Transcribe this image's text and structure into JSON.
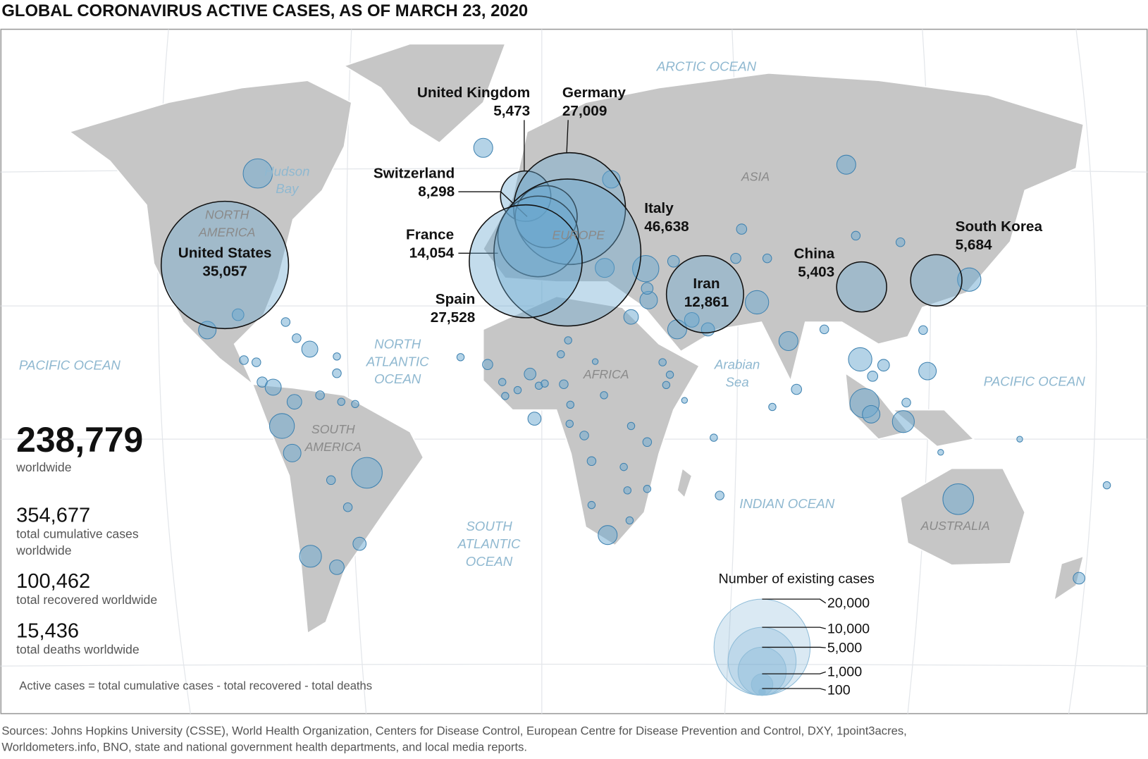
{
  "title": "GLOBAL CORONAVIRUS ACTIVE CASES, AS OF MARCH 23, 2020",
  "oceans": [
    "ARCTIC OCEAN",
    "PACIFIC OCEAN",
    "NORTH ATLANTIC OCEAN",
    "SOUTH ATLANTIC OCEAN",
    "INDIAN OCEAN",
    "PACIFIC OCEAN",
    "Hudson Bay",
    "Arabian Sea"
  ],
  "continents": [
    "NORTH AMERICA",
    "SOUTH AMERICA",
    "EUROPE",
    "AFRICA",
    "ASIA",
    "AUSTRALIA"
  ],
  "countries": [
    {
      "name": "United States",
      "value": 35057,
      "label": "35,057"
    },
    {
      "name": "United Kingdom",
      "value": 5473,
      "label": "5,473"
    },
    {
      "name": "Germany",
      "value": 27009,
      "label": "27,009"
    },
    {
      "name": "Switzerland",
      "value": 8298,
      "label": "8,298"
    },
    {
      "name": "France",
      "value": 14054,
      "label": "14,054"
    },
    {
      "name": "Italy",
      "value": 46638,
      "label": "46,638"
    },
    {
      "name": "Spain",
      "value": 27528,
      "label": "27,528"
    },
    {
      "name": "Iran",
      "value": 12861,
      "label": "12,861"
    },
    {
      "name": "China",
      "value": 5403,
      "label": "5,403"
    },
    {
      "name": "South Korea",
      "value": 5684,
      "label": "5,684"
    }
  ],
  "stats": [
    {
      "value": "238,779",
      "label": "worldwide"
    },
    {
      "value": "354,677",
      "label": "total cumulative cases worldwide"
    },
    {
      "value": "100,462",
      "label": "total recovered worldwide"
    },
    {
      "value": "15,436",
      "label": "total deaths worldwide"
    }
  ],
  "note": "Active cases = total cumulative cases - total recovered - total deaths",
  "legend": {
    "title": "Number of existing cases",
    "sizes": [
      {
        "value": 20000,
        "label": "20,000"
      },
      {
        "value": 10000,
        "label": "10,000"
      },
      {
        "value": 5000,
        "label": "5,000"
      },
      {
        "value": 1000,
        "label": "1,000"
      },
      {
        "value": 100,
        "label": "100"
      }
    ]
  },
  "sources": [
    "Sources: Johns Hopkins University (CSSE), World Health Organization, Centers for Disease Control, European Centre for Disease Prevention and Control, DXY,  1point3acres,",
    "Worldometers.info, BNO, state and national government health departments, and local media reports."
  ]
}
